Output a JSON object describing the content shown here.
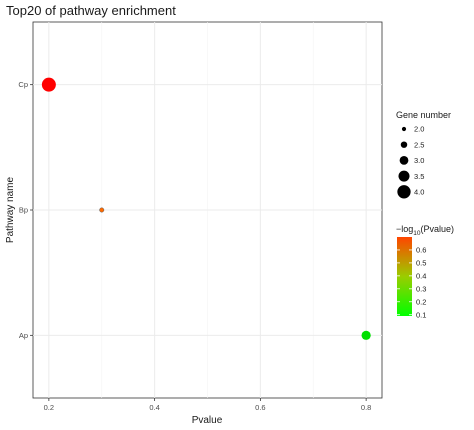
{
  "chart_data": {
    "type": "scatter",
    "title": "Top20 of pathway enrichment",
    "xlabel": "Pvalue",
    "ylabel": "Pathway name",
    "xlim": [
      0.17,
      0.83
    ],
    "xticks": [
      0.2,
      0.4,
      0.6,
      0.8
    ],
    "xtick_labels": [
      "0.2",
      "0.4",
      "0.6",
      "0.8"
    ],
    "categories": [
      "Cp",
      "Bp",
      "Ap"
    ],
    "points": [
      {
        "pathway": "Cp",
        "pvalue": 0.2,
        "gene_number": 4,
        "neg_log10_p": 0.7,
        "color": "#ff0000"
      },
      {
        "pathway": "Bp",
        "pvalue": 0.3,
        "gene_number": 2,
        "neg_log10_p": 0.52,
        "color": "#ff6a00"
      },
      {
        "pathway": "Ap",
        "pvalue": 0.8,
        "gene_number": 3,
        "neg_log10_p": 0.1,
        "color": "#00e000"
      }
    ],
    "grid": true,
    "size_legend": {
      "title": "Gene number",
      "values": [
        2.0,
        2.5,
        3.0,
        3.5,
        4.0
      ],
      "labels": [
        "2.0",
        "2.5",
        "3.0",
        "3.5",
        "4.0"
      ]
    },
    "color_legend": {
      "title_prefix": "−log",
      "title_sub": "10",
      "title_suffix": "(Pvalue)",
      "range": [
        0.09,
        0.7
      ],
      "ticks": [
        0.1,
        0.2,
        0.3,
        0.4,
        0.5,
        0.6
      ],
      "tick_labels": [
        "0.1",
        "0.2",
        "0.3",
        "0.4",
        "0.5",
        "0.6"
      ],
      "color_low": "#00ff00",
      "color_high": "#ff0000"
    }
  }
}
